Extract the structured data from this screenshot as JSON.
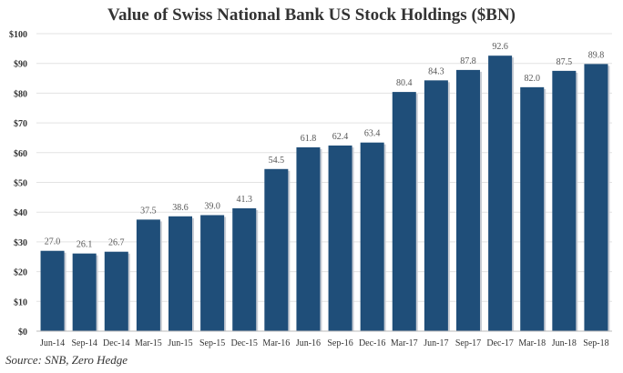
{
  "chart_data": {
    "type": "bar",
    "title": "Value of Swiss National Bank US Stock Holdings ($BN)",
    "source": "Source: SNB, Zero Hedge",
    "categories": [
      "Jun-14",
      "Sep-14",
      "Dec-14",
      "Mar-15",
      "Jun-15",
      "Sep-15",
      "Dec-15",
      "Mar-16",
      "Jun-16",
      "Sep-16",
      "Dec-16",
      "Mar-17",
      "Jun-17",
      "Sep-17",
      "Dec-17",
      "Mar-18",
      "Jun-18",
      "Sep-18"
    ],
    "values": [
      27.0,
      26.1,
      26.7,
      37.5,
      38.6,
      39.0,
      41.3,
      54.5,
      61.8,
      62.4,
      63.4,
      80.4,
      84.3,
      87.8,
      92.6,
      82.0,
      87.5,
      89.8
    ],
    "ylim": [
      0,
      100
    ],
    "yticks": [
      "$0",
      "$10",
      "$20",
      "$30",
      "$40",
      "$50",
      "$60",
      "$70",
      "$80",
      "$90",
      "$100"
    ],
    "grid": true,
    "bar_color": "#1f4e79"
  }
}
